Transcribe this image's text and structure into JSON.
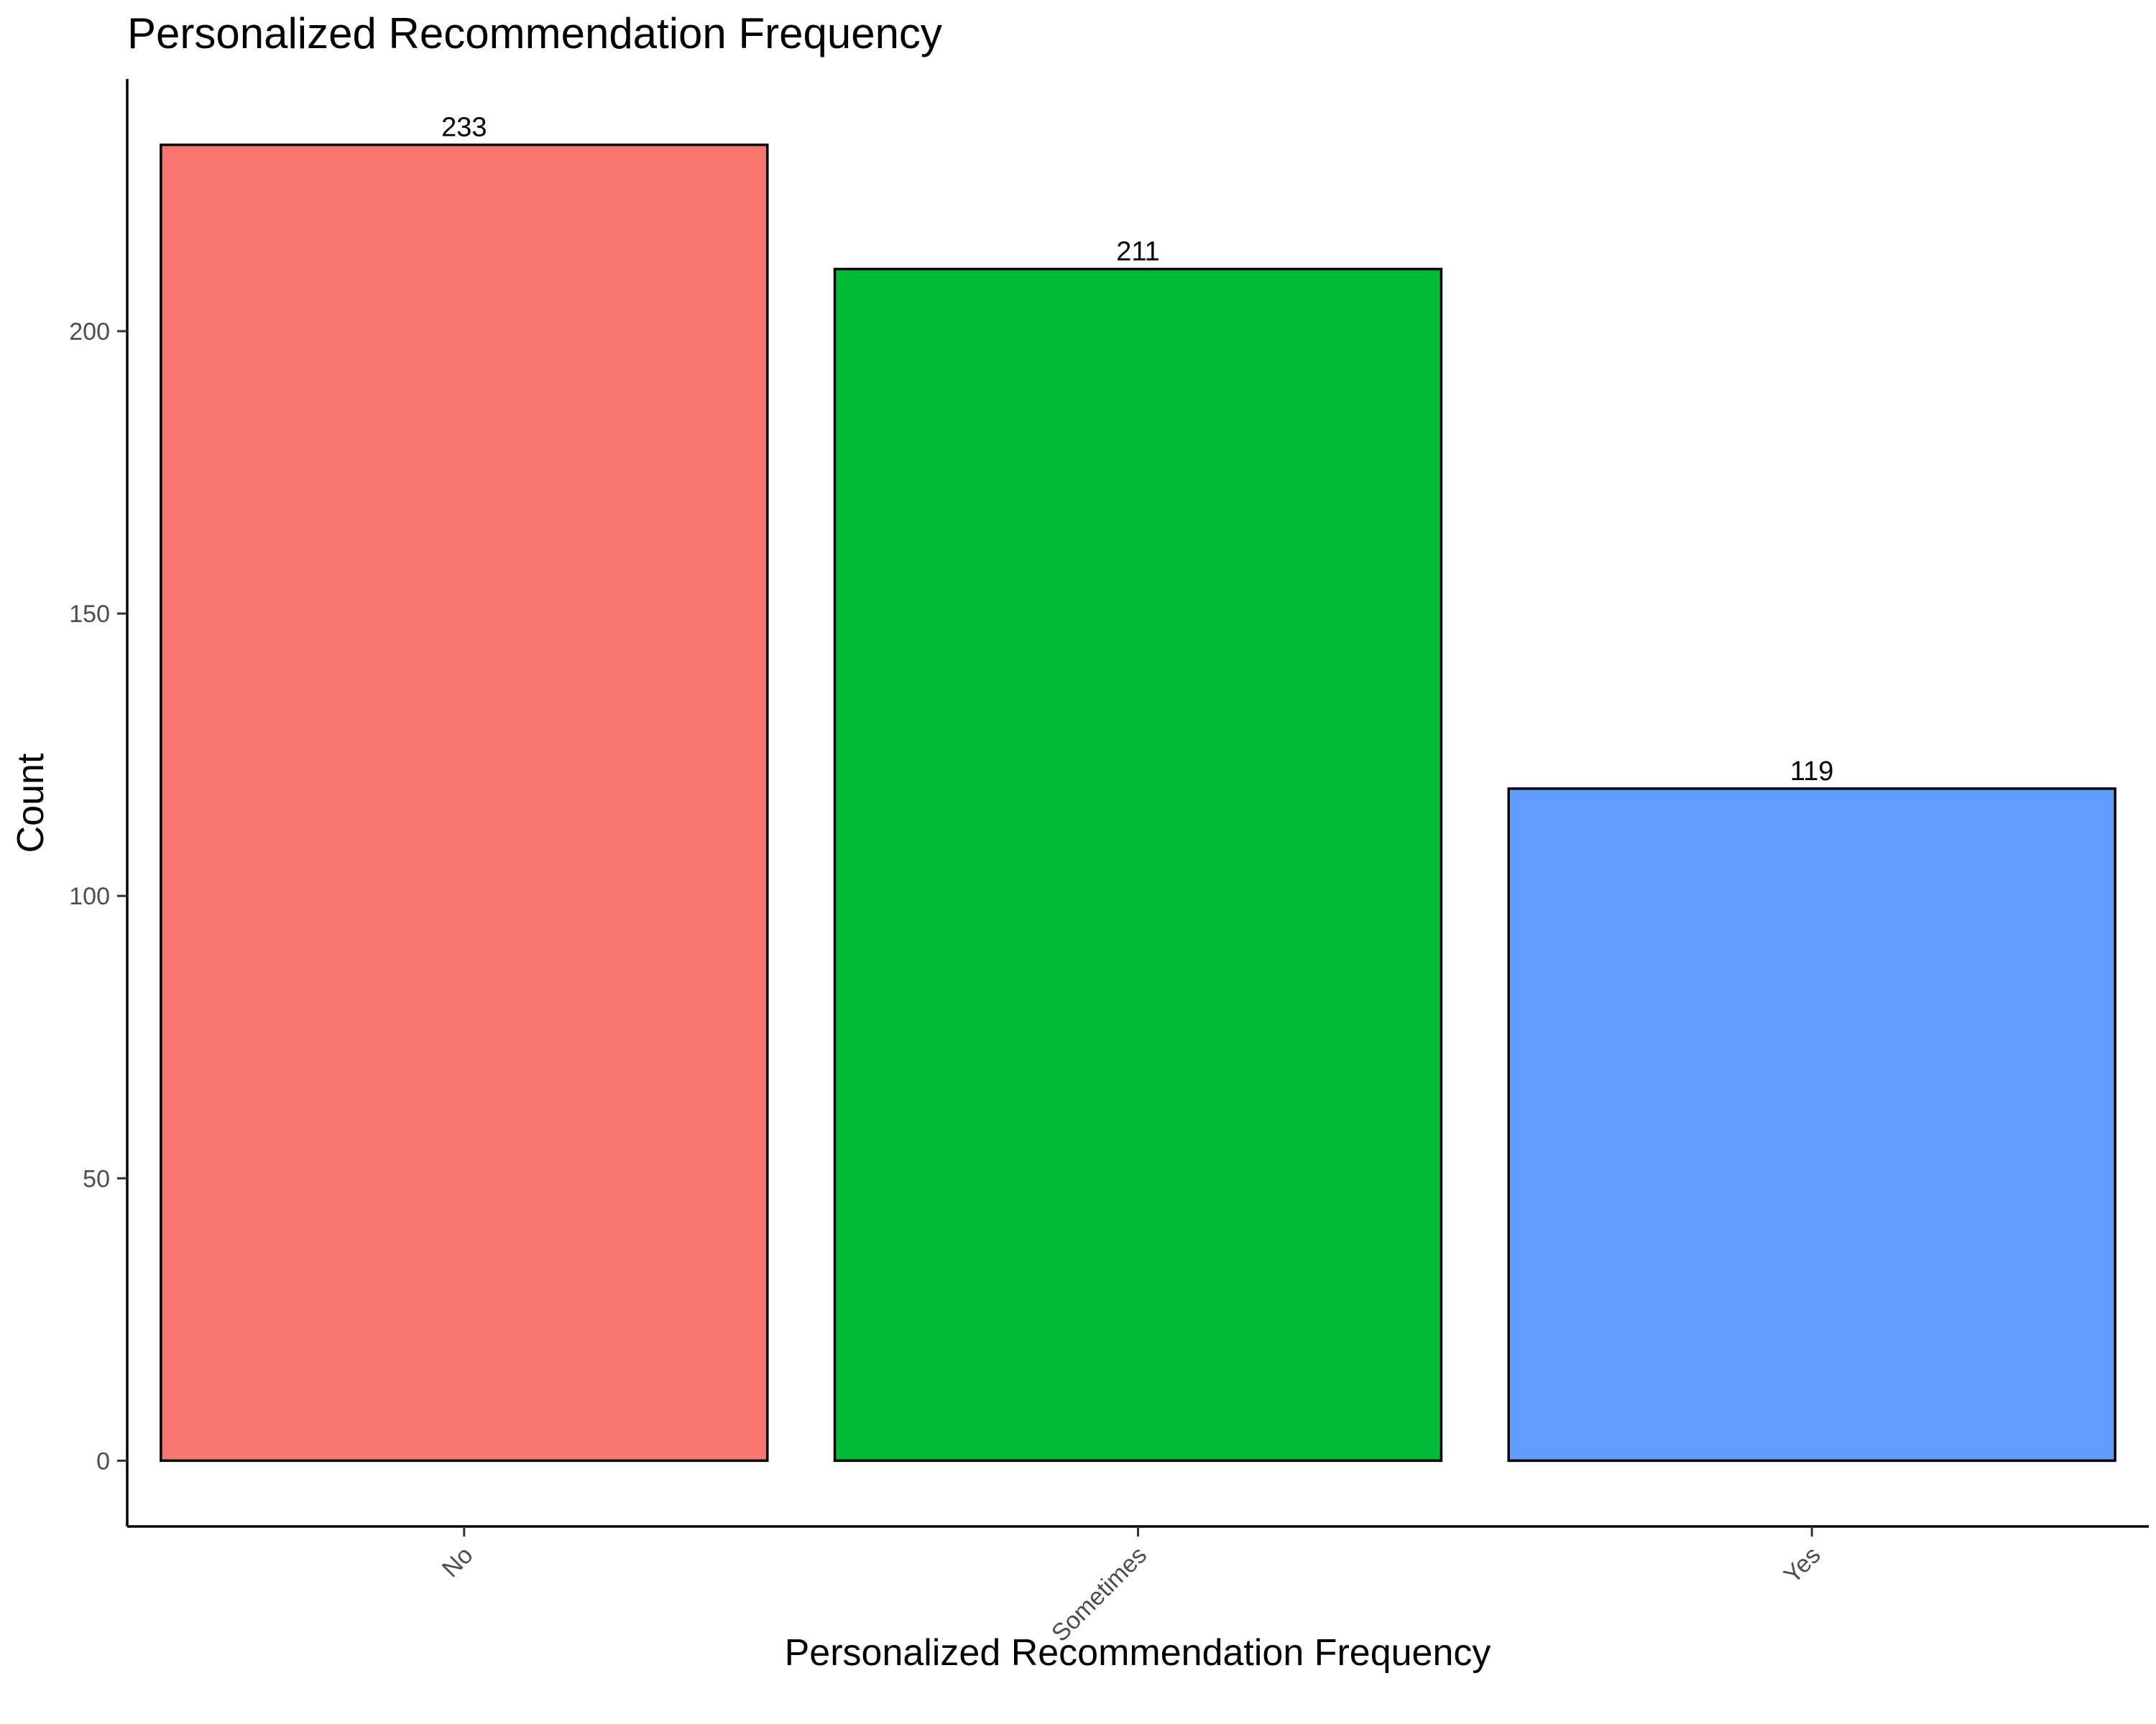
{
  "chart_data": {
    "type": "bar",
    "title": "Personalized Recommendation Frequency",
    "xlabel": "Personalized Recommendation Frequency",
    "ylabel": "Count",
    "categories": [
      "No",
      "Sometimes",
      "Yes"
    ],
    "values": [
      233,
      211,
      119
    ],
    "value_labels": [
      "233",
      "211",
      "119"
    ],
    "colors": [
      "#F8766D",
      "#00BA38",
      "#619CFF"
    ],
    "ylim": [
      -11.65,
      244.65
    ],
    "yticks": [
      0,
      50,
      100,
      150,
      200
    ],
    "ytick_labels": [
      "0",
      "50",
      "100",
      "150",
      "200"
    ],
    "grid": false,
    "legend": "none"
  }
}
